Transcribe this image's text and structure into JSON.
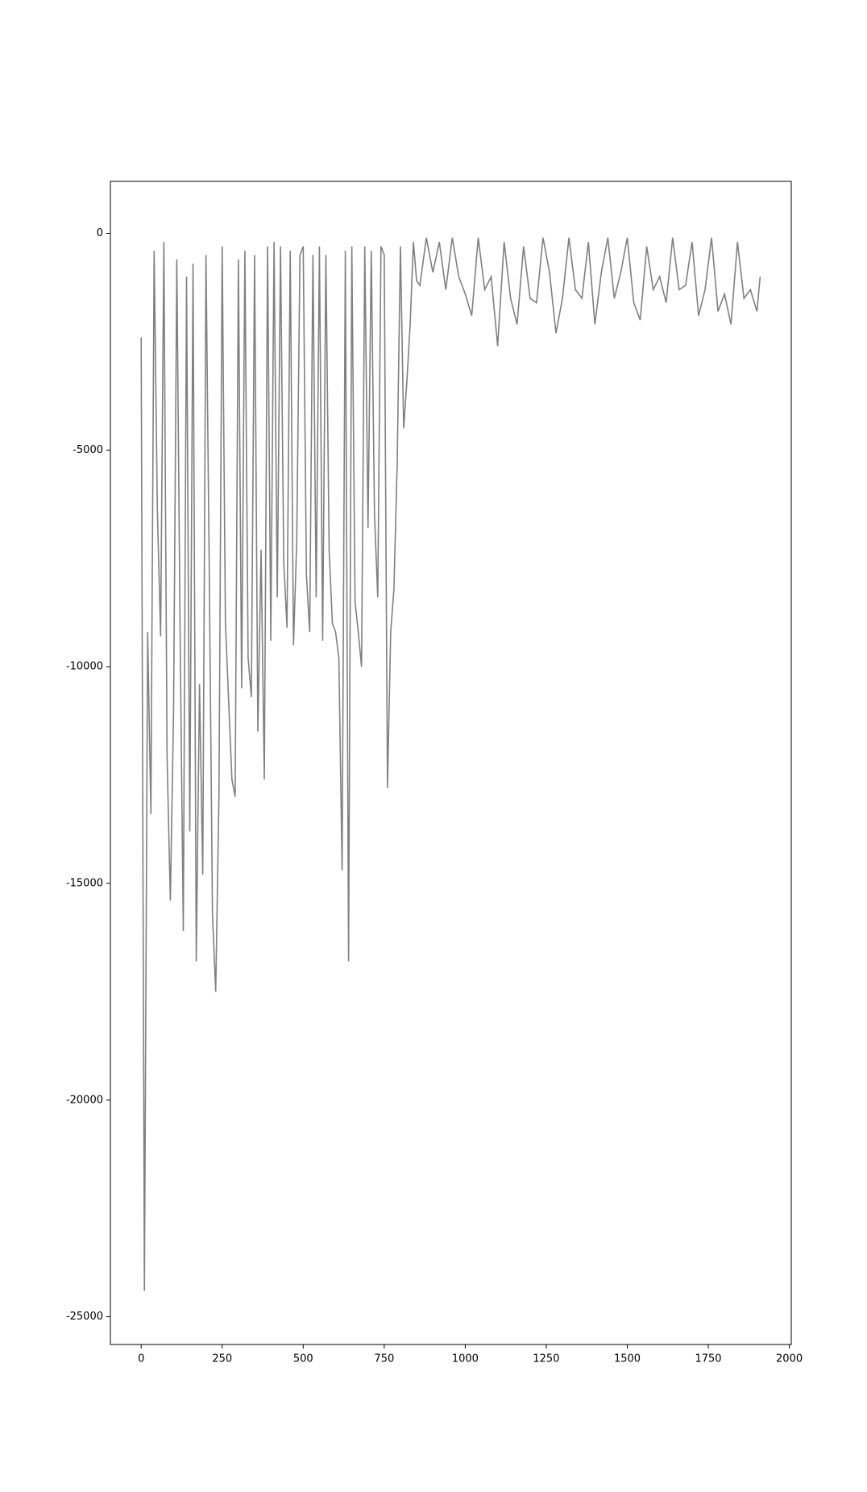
{
  "chart_data": {
    "type": "line",
    "color": "#808080",
    "x": [
      0,
      10,
      20,
      30,
      40,
      50,
      60,
      70,
      80,
      90,
      100,
      110,
      120,
      130,
      140,
      150,
      160,
      170,
      180,
      190,
      200,
      210,
      220,
      230,
      240,
      250,
      260,
      270,
      280,
      290,
      300,
      310,
      320,
      330,
      340,
      350,
      360,
      370,
      380,
      390,
      400,
      410,
      420,
      430,
      440,
      450,
      460,
      470,
      480,
      490,
      500,
      510,
      520,
      530,
      540,
      550,
      560,
      570,
      580,
      590,
      600,
      610,
      620,
      630,
      640,
      650,
      660,
      670,
      680,
      690,
      700,
      710,
      720,
      730,
      740,
      750,
      760,
      770,
      780,
      790,
      800,
      810,
      820,
      830,
      840,
      850,
      860,
      880,
      900,
      920,
      940,
      960,
      980,
      1000,
      1020,
      1040,
      1060,
      1080,
      1100,
      1120,
      1140,
      1160,
      1180,
      1200,
      1220,
      1240,
      1260,
      1280,
      1300,
      1320,
      1340,
      1360,
      1380,
      1400,
      1420,
      1440,
      1460,
      1480,
      1500,
      1520,
      1540,
      1560,
      1580,
      1600,
      1620,
      1640,
      1660,
      1680,
      1700,
      1720,
      1740,
      1760,
      1780,
      1800,
      1820,
      1840,
      1860,
      1880,
      1900,
      1910
    ],
    "values": [
      -2400,
      -24400,
      -9200,
      -13400,
      -400,
      -6400,
      -9300,
      -200,
      -12100,
      -15400,
      -11000,
      -600,
      -9100,
      -16100,
      -1000,
      -13800,
      -700,
      -16800,
      -10400,
      -14800,
      -500,
      -7700,
      -15700,
      -17500,
      -13000,
      -300,
      -9000,
      -10800,
      -12600,
      -13000,
      -600,
      -10500,
      -400,
      -9800,
      -10700,
      -500,
      -11500,
      -7300,
      -12600,
      -300,
      -9400,
      -200,
      -8400,
      -300,
      -7600,
      -9100,
      -400,
      -9500,
      -7100,
      -500,
      -300,
      -7900,
      -9200,
      -500,
      -8400,
      -300,
      -9400,
      -500,
      -7300,
      -9000,
      -9200,
      -9800,
      -14700,
      -400,
      -16800,
      -300,
      -8500,
      -9200,
      -10000,
      -300,
      -6800,
      -400,
      -6500,
      -8400,
      -300,
      -500,
      -12800,
      -9200,
      -8200,
      -5300,
      -300,
      -4500,
      -3400,
      -2100,
      -200,
      -1100,
      -1200,
      -100,
      -900,
      -200,
      -1300,
      -100,
      -1000,
      -1400,
      -1900,
      -100,
      -1300,
      -1000,
      -2600,
      -200,
      -1500,
      -2100,
      -300,
      -1500,
      -1600,
      -100,
      -900,
      -2300,
      -1500,
      -100,
      -1300,
      -1500,
      -200,
      -2100,
      -900,
      -100,
      -1500,
      -900,
      -100,
      -1600,
      -2000,
      -300,
      -1300,
      -1000,
      -1600,
      -100,
      -1300,
      -1200,
      -200,
      -1900,
      -1300,
      -100,
      -1800,
      -1400,
      -2100,
      -200,
      -1500,
      -1300,
      -1800,
      -1000
    ],
    "xlim": [
      -95,
      2006
    ],
    "ylim": [
      -25640,
      1200
    ],
    "xticks": [
      0,
      250,
      500,
      750,
      1000,
      1250,
      1500,
      1750,
      2000
    ],
    "yticks": [
      -25000,
      -20000,
      -15000,
      -10000,
      -5000,
      0
    ]
  }
}
